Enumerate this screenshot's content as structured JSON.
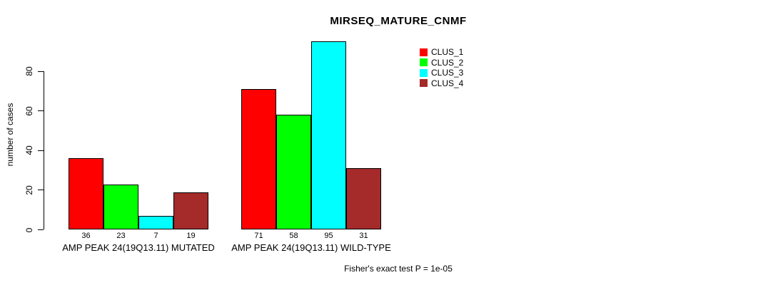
{
  "chart_data": {
    "type": "bar",
    "title": "MIRSEQ_MATURE_CNMF",
    "ylabel": "number of cases",
    "ylim": [
      0,
      95
    ],
    "yticks": [
      0,
      20,
      40,
      60,
      80
    ],
    "grid": false,
    "legend_position": "top-right",
    "categories": [
      "AMP PEAK 24(19Q13.11) MUTATED",
      "AMP PEAK 24(19Q13.11) WILD-TYPE"
    ],
    "series": [
      {
        "name": "CLUS_1",
        "color": "#ff0000",
        "values": [
          36,
          71
        ]
      },
      {
        "name": "CLUS_2",
        "color": "#00ff00",
        "values": [
          23,
          58
        ]
      },
      {
        "name": "CLUS_3",
        "color": "#00ffff",
        "values": [
          7,
          95
        ]
      },
      {
        "name": "CLUS_4",
        "color": "#a52a2a",
        "values": [
          19,
          31
        ]
      }
    ],
    "bar_value_labels": [
      [
        36,
        23,
        7,
        19
      ],
      [
        71,
        58,
        95,
        31
      ]
    ],
    "footnote": "Fisher's exact test P = 1e-05"
  }
}
